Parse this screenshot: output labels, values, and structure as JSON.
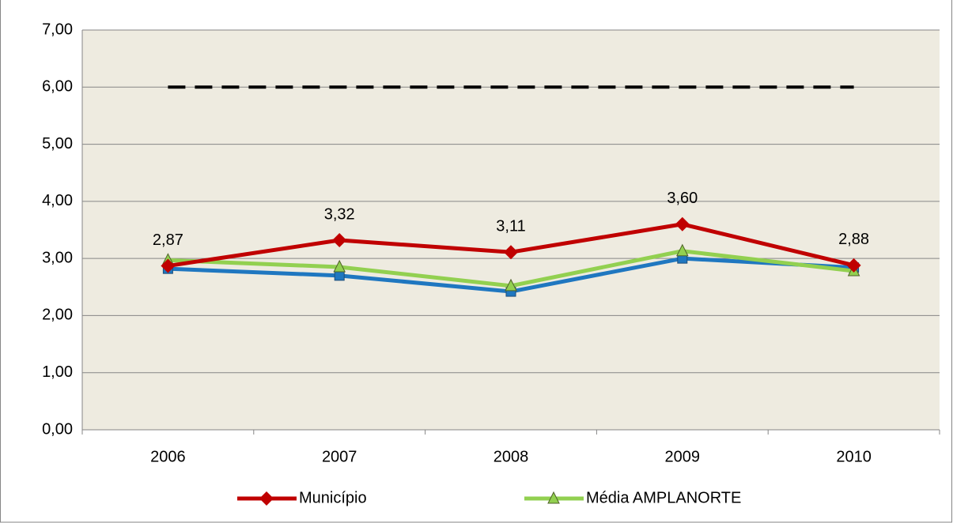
{
  "chart_data": {
    "type": "line",
    "categories": [
      "2006",
      "2007",
      "2008",
      "2009",
      "2010"
    ],
    "series": [
      {
        "color": "#000000",
        "dash": true,
        "values": [
          6,
          6,
          6,
          6,
          6
        ]
      },
      {
        "color": "#1f77c0",
        "marker": "square",
        "values": [
          2.82,
          2.7,
          2.42,
          3.0,
          2.84
        ]
      },
      {
        "name": "Média AMPLANORTE",
        "color": "#92d050",
        "marker": "triangle",
        "values": [
          2.97,
          2.85,
          2.52,
          3.13,
          2.78
        ]
      },
      {
        "name": "Município",
        "color": "#c00000",
        "marker": "diamond",
        "values": [
          2.87,
          3.32,
          3.11,
          3.6,
          2.88
        ],
        "value_labels": [
          "2,87",
          "3,32",
          "3,11",
          "3,60",
          "2,88"
        ]
      }
    ],
    "ylim": [
      0,
      7
    ],
    "yticks": [
      {
        "value": 0,
        "label": "0,00"
      },
      {
        "value": 1,
        "label": "1,00"
      },
      {
        "value": 2,
        "label": "2,00"
      },
      {
        "value": 3,
        "label": "3,00"
      },
      {
        "value": 4,
        "label": "4,00"
      },
      {
        "value": 5,
        "label": "5,00"
      },
      {
        "value": 6,
        "label": "6,00"
      },
      {
        "value": 7,
        "label": "7,00"
      }
    ],
    "grid": true,
    "legend": "bottom"
  }
}
